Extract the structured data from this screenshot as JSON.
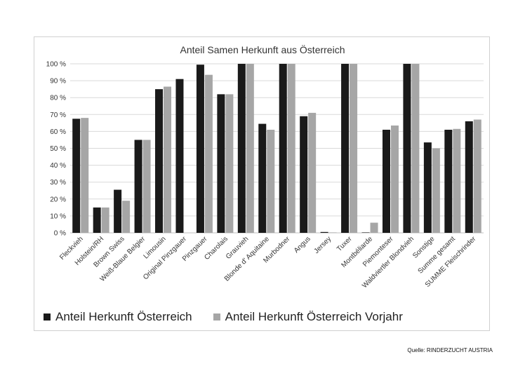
{
  "source": "Quelle: RINDERZUCHT AUSTRIA",
  "chart_data": {
    "type": "bar",
    "title": "Anteil Samen Herkunft aus Österreich",
    "categories": [
      "Fleckvieh",
      "Holstein/RH",
      "Brown Swiss",
      "Weiß-Blaue Belgier",
      "Limousin",
      "Original Pinzgauer",
      "Pinzgauer",
      "Charolais",
      "Grauvieh",
      "Blonde d' Aquitaine",
      "Murbodner",
      "Angus",
      "Jersey",
      "Tuxer",
      "Montbéliarde",
      "Piemonteser",
      "Waldviertler Blondvieh",
      "Sonstige",
      "Summe gesamt",
      "SUMME Fleischrinder"
    ],
    "series": [
      {
        "name": "Anteil Herkunft Österreich",
        "color": "#1a1a1a",
        "values": [
          67.5,
          15,
          25.5,
          55,
          85,
          91,
          99.5,
          82,
          100,
          64.5,
          100,
          69,
          0.5,
          100,
          0,
          61,
          100,
          53.5,
          61,
          66
        ]
      },
      {
        "name": "Anteil Herkunft Österreich Vorjahr",
        "color": "#a6a6a6",
        "values": [
          68,
          15,
          19,
          55,
          86.5,
          null,
          93.5,
          82,
          100,
          61,
          100,
          71,
          0,
          100,
          6,
          63.5,
          100,
          50,
          61.5,
          67
        ]
      }
    ],
    "yticks": [
      "0 %",
      "10 %",
      "20 %",
      "30 %",
      "40 %",
      "50 %",
      "60 %",
      "70 %",
      "80 %",
      "90 %",
      "100 %"
    ],
    "ylim": [
      0,
      100
    ],
    "grid": true,
    "legend": "bottom"
  }
}
